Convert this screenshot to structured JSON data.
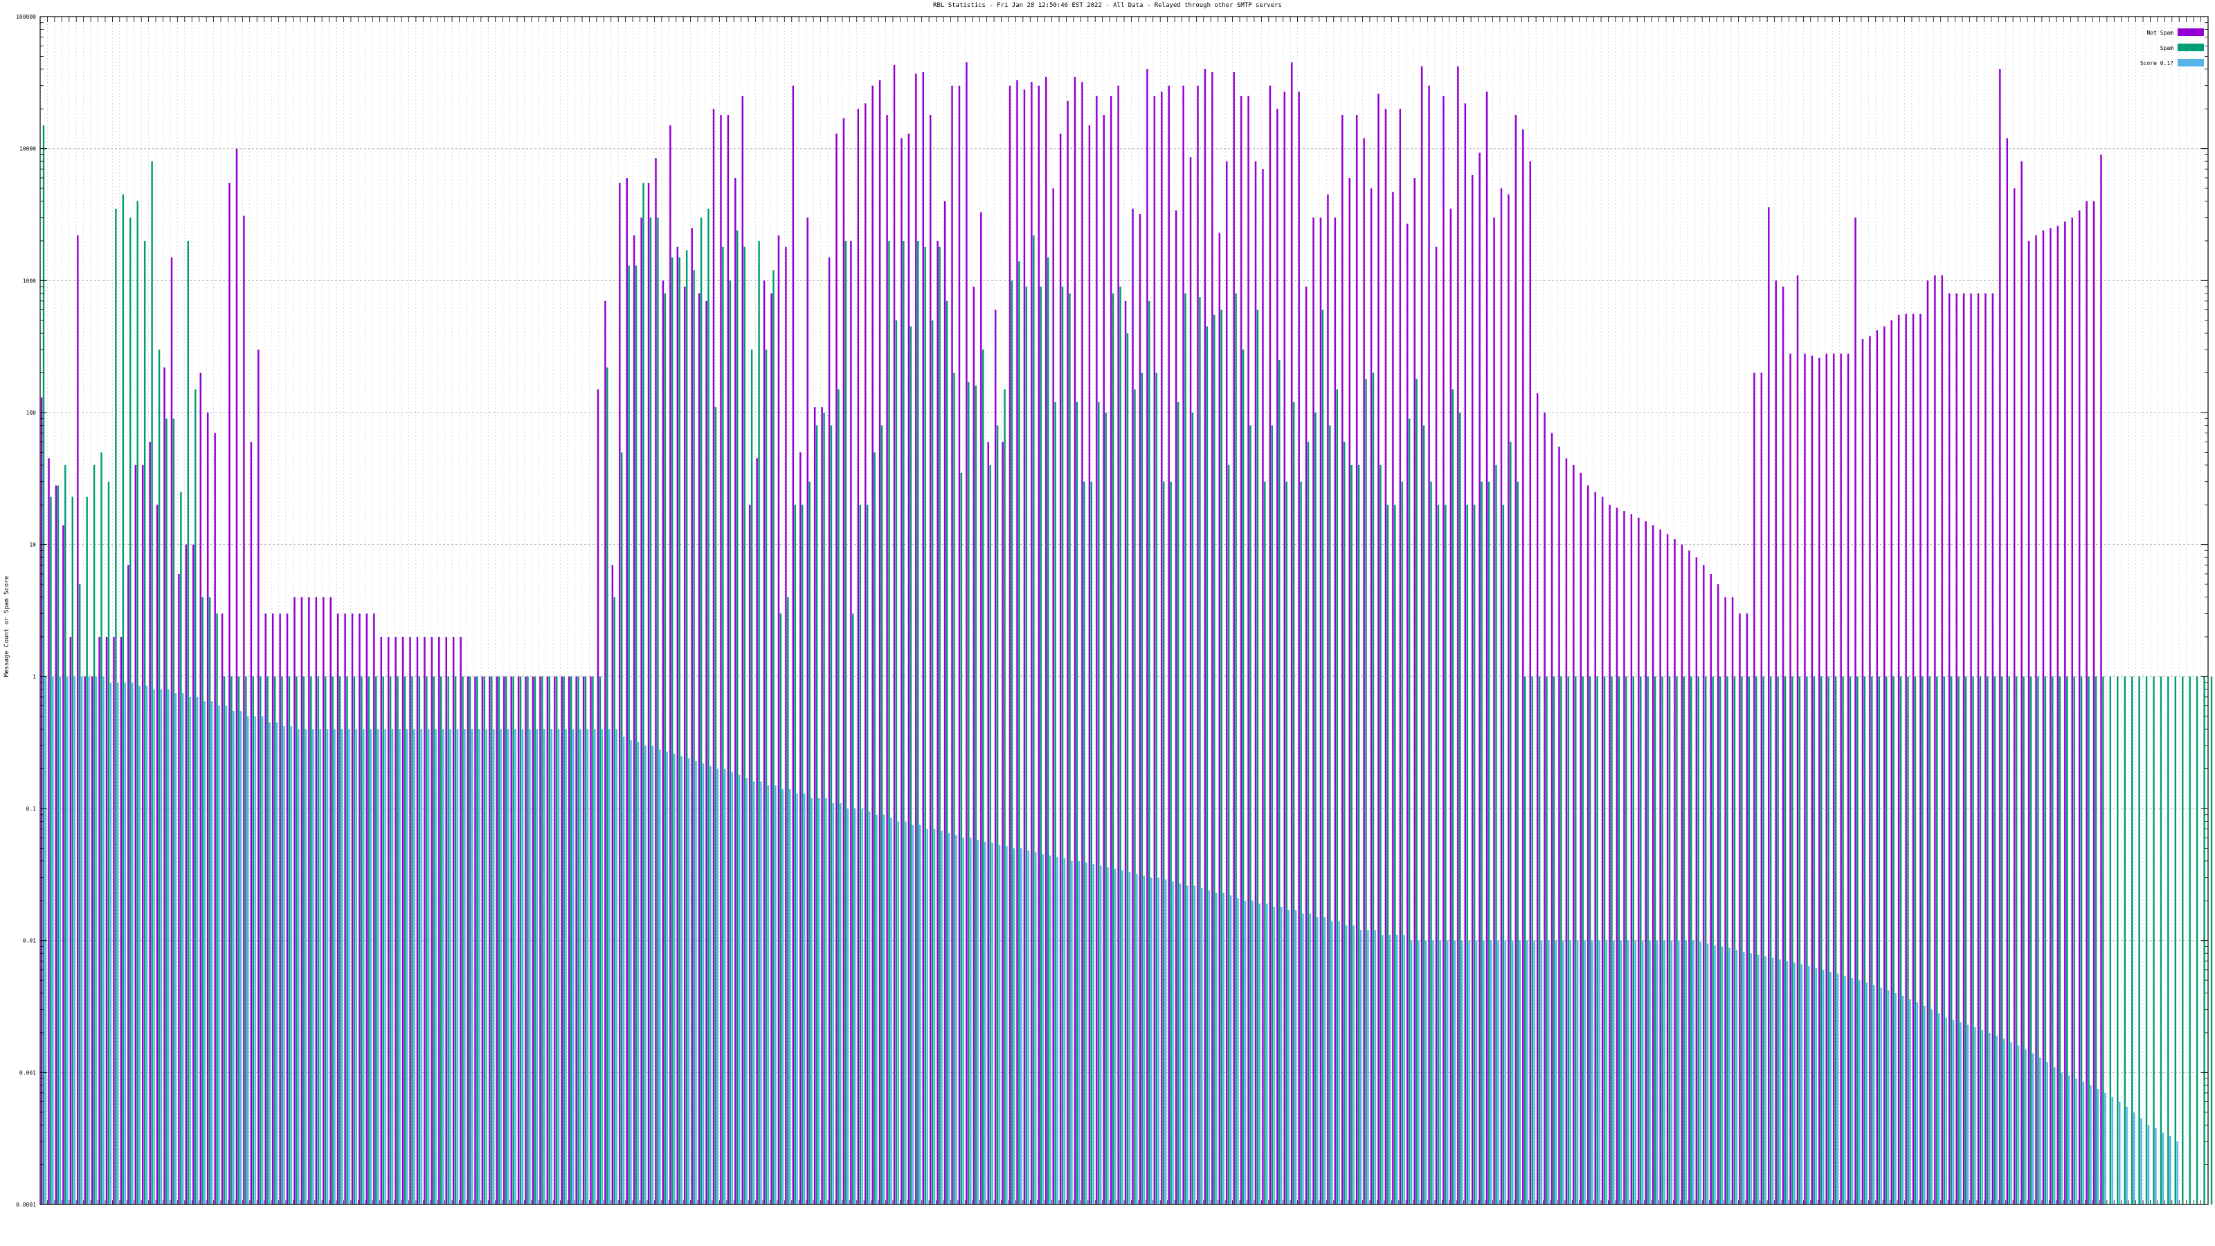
{
  "chart_data": {
    "type": "bar",
    "title": "RBL Statistics - Fri Jan 28 12:50:46 EST 2022 - All Data - Relayed through other SMTP servers",
    "xlabel": "",
    "ylabel": "Message Count or Spam Score",
    "y_scale": "log",
    "ylim": [
      0.0001,
      100000
    ],
    "y_ticks": [
      {
        "value": 0.0001,
        "label": "0.0001"
      },
      {
        "value": 0.001,
        "label": "0.001"
      },
      {
        "value": 0.01,
        "label": "0.01"
      },
      {
        "value": 0.1,
        "label": "0.1"
      },
      {
        "value": 1,
        "label": "1"
      },
      {
        "value": 10,
        "label": "10"
      },
      {
        "value": 100,
        "label": "100"
      },
      {
        "value": 1000,
        "label": "1000"
      },
      {
        "value": 10000,
        "label": "10000"
      },
      {
        "value": 100000,
        "label": "100000"
      }
    ],
    "grid": true,
    "legend_position": "top-right",
    "category_count": 300,
    "series": [
      {
        "name": "Not Spam",
        "color": "#9400d3",
        "values": [
          130,
          45,
          28,
          14,
          2,
          2200,
          1,
          1,
          2,
          2,
          2,
          2,
          7,
          40,
          40,
          60,
          20,
          220,
          1500,
          6,
          10,
          10,
          200,
          100,
          70,
          3,
          5500,
          10000,
          3100,
          60,
          300,
          3,
          3,
          3,
          3,
          4,
          4,
          4,
          4,
          4,
          4,
          3,
          3,
          3,
          3,
          3,
          3,
          2,
          2,
          2,
          2,
          2,
          2,
          2,
          2,
          2,
          2,
          2,
          2,
          1,
          1,
          1,
          1,
          1,
          1,
          1,
          1,
          1,
          1,
          1,
          1,
          1,
          1,
          1,
          1,
          1,
          1,
          150,
          700,
          7,
          5500,
          6000,
          2200,
          3000,
          5500,
          8500,
          1000,
          15000,
          1800,
          900,
          2500,
          800,
          700,
          20000,
          18000,
          18000,
          6000,
          25000,
          20,
          45,
          1000,
          800,
          2200,
          1800,
          30000,
          50,
          3000,
          110,
          110,
          1500,
          13000,
          17000,
          2000,
          20000,
          22000,
          30000,
          33000,
          18000,
          43000,
          12000,
          13000,
          37000,
          38000,
          18000,
          2000,
          4000,
          30000,
          30000,
          45000,
          900,
          3300,
          60,
          600,
          60,
          30000,
          33000,
          28000,
          32000,
          30000,
          35000,
          5000,
          13000,
          23000,
          35000,
          32000,
          15000,
          25000,
          18000,
          25000,
          30000,
          700,
          3500,
          3200,
          40000,
          25000,
          27000,
          30000,
          3400,
          30000,
          8600,
          30000,
          40000,
          38000,
          2300,
          8000,
          38000,
          25000,
          25000,
          8000,
          7000,
          30000,
          20000,
          27000,
          45000,
          27000,
          900,
          3000,
          3000,
          4500,
          3000,
          18000,
          6000,
          18000,
          12000,
          5000,
          26000,
          20000,
          4700,
          20000,
          2700,
          6000,
          42000,
          30000,
          1800,
          25000,
          3500,
          42000,
          22000,
          6300,
          9300,
          27000,
          3000,
          5000,
          4500,
          18000,
          14000,
          8000,
          140,
          100,
          70,
          55,
          45,
          40,
          35,
          28,
          25,
          23,
          20,
          19,
          18,
          17,
          16,
          15,
          14,
          13,
          12,
          11,
          10,
          9,
          8,
          7,
          6,
          5,
          4,
          4,
          3,
          3,
          200,
          200,
          3600,
          1000,
          900,
          280,
          1100,
          280,
          270,
          260,
          280,
          280,
          280,
          280,
          3000,
          360,
          380,
          420,
          450,
          500,
          550,
          560,
          560,
          560,
          1000,
          1100,
          1100,
          800,
          800,
          800,
          800,
          800,
          800,
          800,
          40000,
          12000,
          5000,
          8000,
          2000,
          2200,
          2400,
          2500,
          2600,
          2800,
          3000,
          3400,
          4000,
          4000,
          9000
        ]
      },
      {
        "name": "Spam",
        "color": "#009e73",
        "values": [
          15000,
          23,
          28,
          40,
          23,
          5,
          23,
          40,
          50,
          30,
          3500,
          4500,
          3000,
          4000,
          2000,
          8000,
          300,
          90,
          90,
          25,
          2000,
          150,
          4,
          4,
          3,
          1,
          1,
          1,
          1,
          1,
          1,
          1,
          1,
          1,
          1,
          1,
          1,
          1,
          1,
          1,
          1,
          1,
          1,
          1,
          1,
          1,
          1,
          1,
          1,
          1,
          1,
          1,
          1,
          1,
          1,
          1,
          1,
          1,
          1,
          1,
          1,
          1,
          1,
          1,
          1,
          1,
          1,
          1,
          1,
          1,
          1,
          1,
          1,
          1,
          1,
          1,
          1,
          1,
          220,
          4,
          50,
          1300,
          1300,
          5500,
          3000,
          3000,
          800,
          1500,
          1500,
          1700,
          1200,
          3000,
          3500,
          110,
          1800,
          1000,
          2400,
          1800,
          300,
          2000,
          300,
          1200,
          3,
          4,
          20,
          20,
          30,
          80,
          100,
          80,
          150,
          2000,
          3,
          20,
          20,
          50,
          80,
          2000,
          500,
          2000,
          450,
          2000,
          1800,
          500,
          1800,
          700,
          200,
          35,
          170,
          160,
          300,
          40,
          80,
          150,
          1000,
          1400,
          900,
          2200,
          900,
          1500,
          120,
          900,
          800,
          120,
          30,
          30,
          120,
          100,
          800,
          900,
          400,
          150,
          200,
          700,
          200,
          30,
          30,
          120,
          800,
          100,
          750,
          450,
          550,
          600,
          40,
          800,
          300,
          80,
          600,
          30,
          80,
          250,
          30,
          120,
          30,
          60,
          100,
          600,
          80,
          150,
          60,
          40,
          40,
          180,
          200,
          40,
          20,
          20,
          30,
          90,
          180,
          80,
          30,
          20,
          20,
          150,
          100,
          20,
          20,
          30,
          30,
          40,
          20,
          60,
          30,
          1,
          1,
          1,
          1,
          1,
          1,
          1,
          1,
          1,
          1,
          1,
          1,
          1,
          1,
          1,
          1,
          1,
          1,
          1,
          1,
          1,
          1,
          1,
          1,
          1,
          1,
          1,
          1,
          1,
          1,
          1,
          1,
          1,
          1,
          1,
          1,
          1,
          1,
          1,
          1,
          1,
          1,
          1,
          1,
          1,
          1,
          1,
          1,
          1,
          1,
          1,
          1,
          1,
          1,
          1,
          1,
          1,
          1,
          1,
          1,
          1,
          1,
          1,
          1,
          1,
          1,
          1,
          1,
          1,
          1,
          1,
          1,
          1,
          1,
          1,
          1,
          1,
          1,
          1,
          1,
          1,
          1,
          1,
          1,
          1,
          1,
          1,
          1,
          1,
          1,
          1,
          1,
          1,
          1,
          1,
          1,
          1,
          1,
          1,
          1,
          1,
          1,
          1,
          1,
          1,
          1,
          1,
          1,
          1,
          1,
          1
        ]
      },
      {
        "name": "Score 0.1?",
        "color": "#56b4e9",
        "values": [
          1,
          1,
          1,
          1,
          1,
          1,
          1,
          1,
          1,
          0.9,
          0.9,
          0.9,
          0.9,
          0.85,
          0.85,
          0.8,
          0.8,
          0.8,
          0.75,
          0.75,
          0.7,
          0.7,
          0.65,
          0.65,
          0.6,
          0.6,
          0.55,
          0.55,
          0.5,
          0.5,
          0.5,
          0.45,
          0.45,
          0.42,
          0.42,
          0.4,
          0.4,
          0.4,
          0.4,
          0.4,
          0.4,
          0.4,
          0.4,
          0.4,
          0.4,
          0.4,
          0.4,
          0.4,
          0.4,
          0.4,
          0.4,
          0.4,
          0.4,
          0.4,
          0.4,
          0.4,
          0.4,
          0.4,
          0.4,
          0.4,
          0.4,
          0.4,
          0.4,
          0.4,
          0.4,
          0.4,
          0.4,
          0.4,
          0.4,
          0.4,
          0.4,
          0.4,
          0.4,
          0.4,
          0.4,
          0.4,
          0.4,
          0.4,
          0.4,
          0.4,
          0.35,
          0.33,
          0.32,
          0.3,
          0.3,
          0.28,
          0.27,
          0.26,
          0.25,
          0.24,
          0.23,
          0.22,
          0.21,
          0.2,
          0.2,
          0.19,
          0.18,
          0.17,
          0.16,
          0.16,
          0.15,
          0.15,
          0.14,
          0.14,
          0.13,
          0.13,
          0.12,
          0.12,
          0.12,
          0.11,
          0.11,
          0.1,
          0.1,
          0.1,
          0.095,
          0.09,
          0.09,
          0.085,
          0.08,
          0.08,
          0.075,
          0.075,
          0.07,
          0.07,
          0.068,
          0.065,
          0.063,
          0.06,
          0.06,
          0.058,
          0.056,
          0.055,
          0.053,
          0.052,
          0.05,
          0.05,
          0.048,
          0.047,
          0.045,
          0.044,
          0.043,
          0.042,
          0.04,
          0.04,
          0.039,
          0.038,
          0.037,
          0.036,
          0.035,
          0.034,
          0.033,
          0.032,
          0.031,
          0.03,
          0.03,
          0.029,
          0.028,
          0.027,
          0.026,
          0.026,
          0.025,
          0.024,
          0.023,
          0.023,
          0.022,
          0.021,
          0.02,
          0.02,
          0.019,
          0.019,
          0.018,
          0.018,
          0.017,
          0.017,
          0.016,
          0.016,
          0.015,
          0.015,
          0.014,
          0.014,
          0.013,
          0.013,
          0.012,
          0.012,
          0.012,
          0.011,
          0.011,
          0.011,
          0.011,
          0.01,
          0.01,
          0.01,
          0.01,
          0.01,
          0.01,
          0.01,
          0.01,
          0.01,
          0.01,
          0.01,
          0.01,
          0.01,
          0.01,
          0.01,
          0.01,
          0.01,
          0.01,
          0.01,
          0.01,
          0.01,
          0.01,
          0.01,
          0.01,
          0.01,
          0.01,
          0.01,
          0.01,
          0.01,
          0.01,
          0.01,
          0.01,
          0.01,
          0.01,
          0.01,
          0.01,
          0.01,
          0.01,
          0.01,
          0.01,
          0.0098,
          0.0095,
          0.0092,
          0.009,
          0.0088,
          0.0085,
          0.0082,
          0.008,
          0.0078,
          0.0076,
          0.0074,
          0.0072,
          0.007,
          0.0068,
          0.0066,
          0.0064,
          0.0062,
          0.006,
          0.0058,
          0.0056,
          0.0054,
          0.0052,
          0.005,
          0.0048,
          0.0046,
          0.0044,
          0.0042,
          0.004,
          0.0038,
          0.0036,
          0.0034,
          0.0032,
          0.003,
          0.0028,
          0.0026,
          0.0025,
          0.0024,
          0.0023,
          0.0022,
          0.0021,
          0.002,
          0.0019,
          0.0018,
          0.0017,
          0.0016,
          0.0015,
          0.0014,
          0.0013,
          0.0012,
          0.0011,
          0.001,
          0.00095,
          0.0009,
          0.00085,
          0.0008,
          0.00075,
          0.0007,
          0.00065,
          0.0006,
          0.00055,
          0.0005,
          0.00045,
          0.0004,
          0.00038,
          0.00035,
          0.00033,
          0.0003
        ]
      }
    ]
  }
}
